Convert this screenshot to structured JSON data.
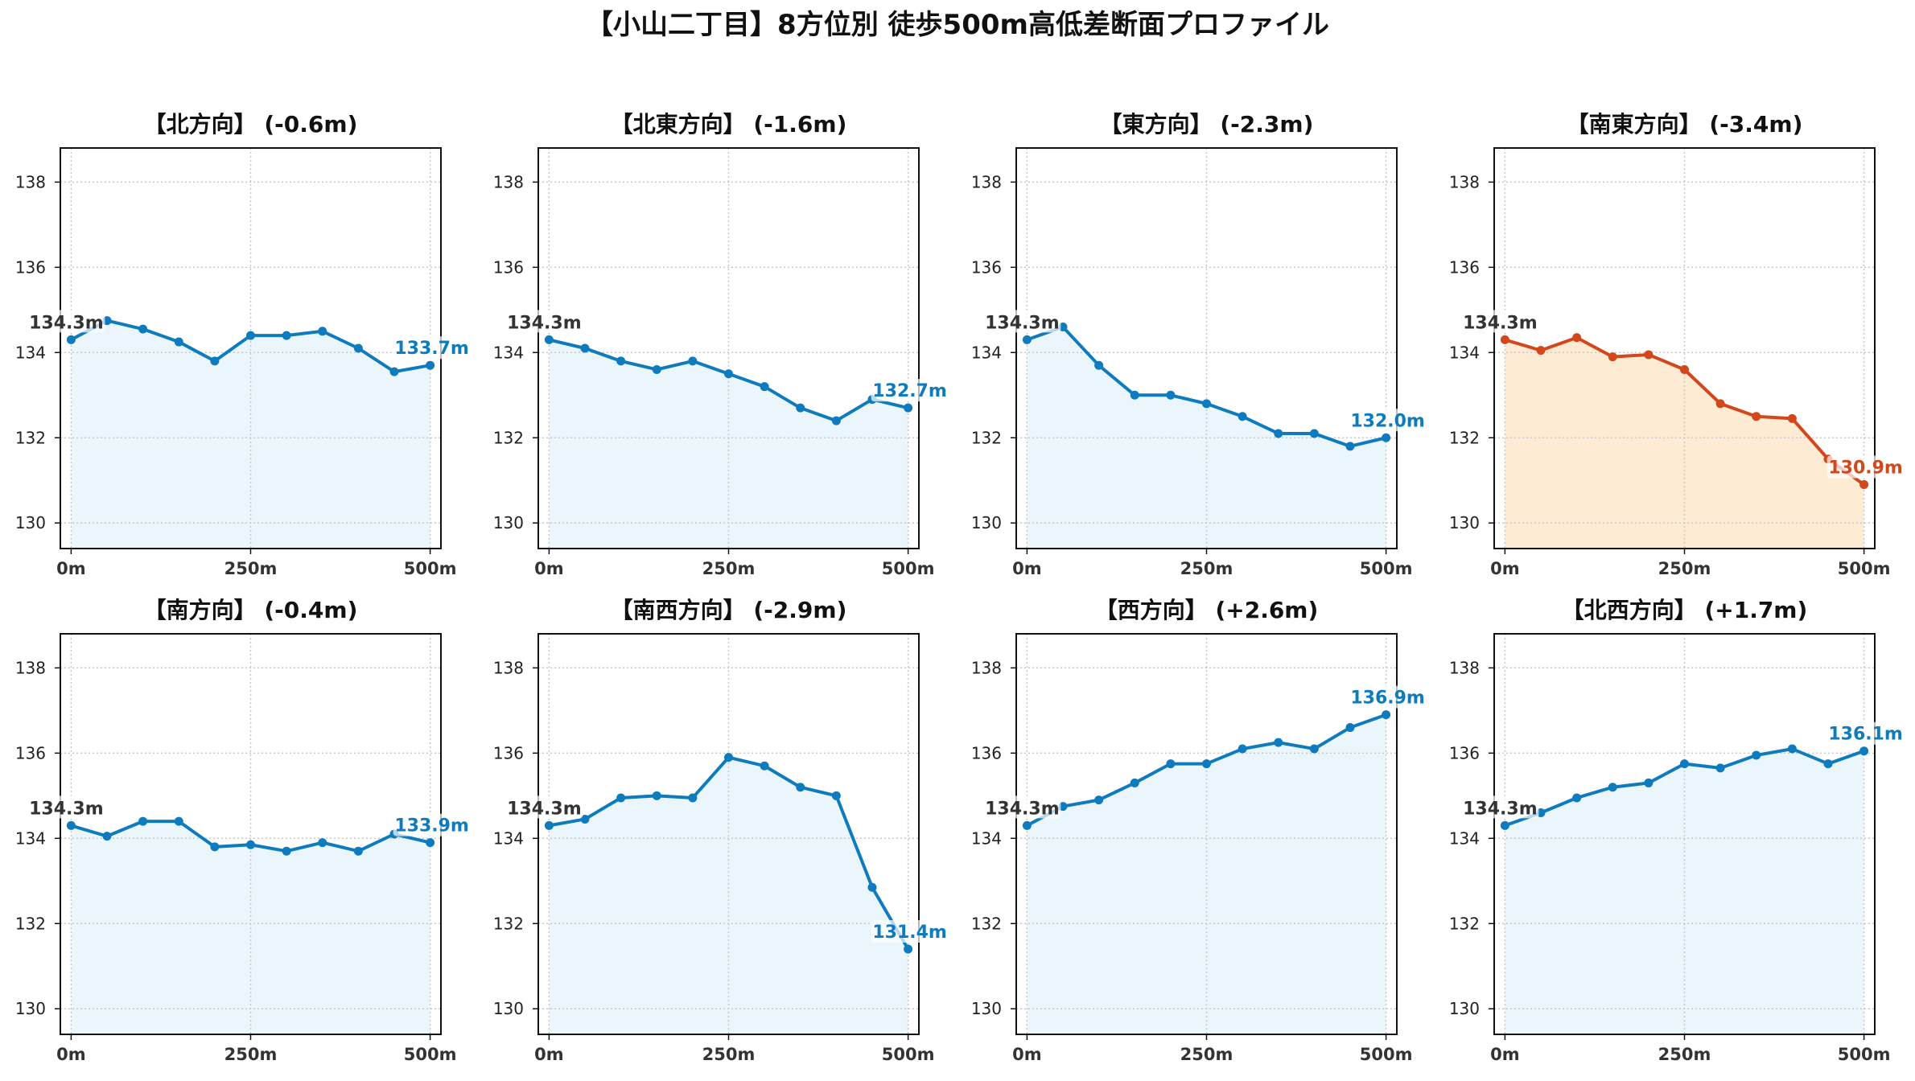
{
  "title": "【小山二丁目】8方位別 徒歩500m高低差断面プロファイル",
  "colors": {
    "normal_line": "#0f7bbf",
    "normal_fill": "#eaf6fb",
    "highlight_line": "#d2471b",
    "highlight_fill": "#fdebd3",
    "start_label": "#333333",
    "grid": "#c8c8c8"
  },
  "axes": {
    "x_ticks": [
      "0m",
      "250m",
      "500m"
    ],
    "x_tick_values": [
      0,
      250,
      500
    ],
    "y_ticks": [
      "130",
      "132",
      "134",
      "136",
      "138"
    ],
    "y_tick_values": [
      130,
      132,
      134,
      136,
      138
    ],
    "xlim": [
      -15,
      515
    ],
    "ylim": [
      129.4,
      138.8
    ],
    "grid": true
  },
  "chart_data": [
    {
      "type": "line",
      "title": "【北方向】 (-0.6m)",
      "highlight": false,
      "x": [
        0,
        50,
        100,
        150,
        200,
        250,
        300,
        350,
        400,
        450,
        500
      ],
      "y": [
        134.3,
        134.75,
        134.55,
        134.25,
        133.8,
        134.4,
        134.4,
        134.5,
        134.1,
        133.55,
        133.7
      ],
      "start_label": "134.3m",
      "end_label": "133.7m"
    },
    {
      "type": "line",
      "title": "【北東方向】 (-1.6m)",
      "highlight": false,
      "x": [
        0,
        50,
        100,
        150,
        200,
        250,
        300,
        350,
        400,
        450,
        500
      ],
      "y": [
        134.3,
        134.1,
        133.8,
        133.6,
        133.8,
        133.5,
        133.2,
        132.7,
        132.4,
        132.9,
        132.7
      ],
      "start_label": "134.3m",
      "end_label": "132.7m"
    },
    {
      "type": "line",
      "title": "【東方向】 (-2.3m)",
      "highlight": false,
      "x": [
        0,
        50,
        100,
        150,
        200,
        250,
        300,
        350,
        400,
        450,
        500
      ],
      "y": [
        134.3,
        134.6,
        133.7,
        133.0,
        133.0,
        132.8,
        132.5,
        132.1,
        132.1,
        131.8,
        132.0
      ],
      "start_label": "134.3m",
      "end_label": "132.0m"
    },
    {
      "type": "line",
      "title": "【南東方向】 (-3.4m)",
      "highlight": true,
      "x": [
        0,
        50,
        100,
        150,
        200,
        250,
        300,
        350,
        400,
        450,
        500
      ],
      "y": [
        134.3,
        134.05,
        134.35,
        133.9,
        133.95,
        133.6,
        132.8,
        132.5,
        132.45,
        131.5,
        130.9
      ],
      "start_label": "134.3m",
      "end_label": "130.9m"
    },
    {
      "type": "line",
      "title": "【南方向】 (-0.4m)",
      "highlight": false,
      "x": [
        0,
        50,
        100,
        150,
        200,
        250,
        300,
        350,
        400,
        450,
        500
      ],
      "y": [
        134.3,
        134.05,
        134.4,
        134.4,
        133.8,
        133.85,
        133.7,
        133.9,
        133.7,
        134.1,
        133.9
      ],
      "start_label": "134.3m",
      "end_label": "133.9m"
    },
    {
      "type": "line",
      "title": "【南西方向】 (-2.9m)",
      "highlight": false,
      "x": [
        0,
        50,
        100,
        150,
        200,
        250,
        300,
        350,
        400,
        450,
        500
      ],
      "y": [
        134.3,
        134.45,
        134.95,
        135.0,
        134.95,
        135.9,
        135.7,
        135.2,
        135.0,
        132.85,
        131.4
      ],
      "start_label": "134.3m",
      "end_label": "131.4m"
    },
    {
      "type": "line",
      "title": "【西方向】 (+2.6m)",
      "highlight": false,
      "x": [
        0,
        50,
        100,
        150,
        200,
        250,
        300,
        350,
        400,
        450,
        500
      ],
      "y": [
        134.3,
        134.75,
        134.9,
        135.3,
        135.75,
        135.75,
        136.1,
        136.25,
        136.1,
        136.6,
        136.9
      ],
      "start_label": "134.3m",
      "end_label": "136.9m"
    },
    {
      "type": "line",
      "title": "【北西方向】 (+1.7m)",
      "highlight": false,
      "x": [
        0,
        50,
        100,
        150,
        200,
        250,
        300,
        350,
        400,
        450,
        500
      ],
      "y": [
        134.3,
        134.6,
        134.95,
        135.2,
        135.3,
        135.75,
        135.65,
        135.95,
        136.1,
        135.75,
        136.05
      ],
      "start_label": "134.3m",
      "end_label": "136.1m"
    }
  ]
}
